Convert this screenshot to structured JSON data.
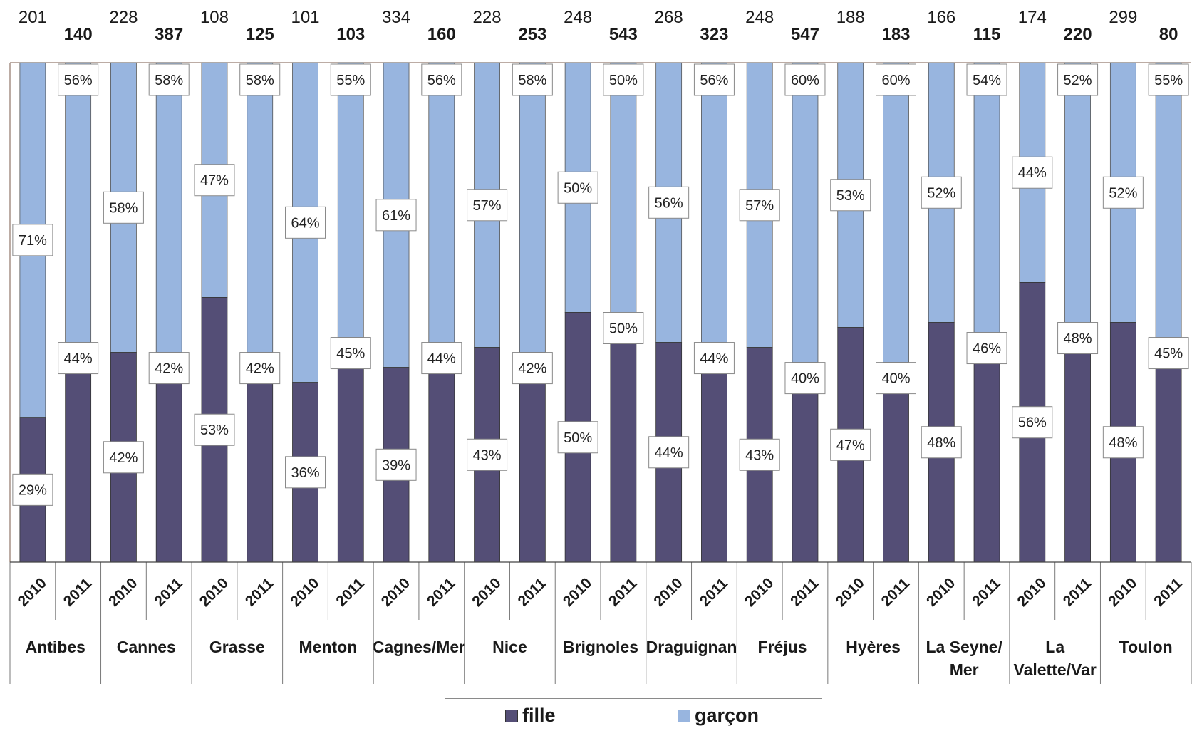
{
  "chart_data": {
    "type": "bar",
    "stacked": true,
    "percent_stacked": true,
    "title": "",
    "xlabel": "",
    "ylabel": "",
    "ylim": [
      0,
      100
    ],
    "grid": false,
    "legend_position": "bottom",
    "colors": {
      "fille": "#544e76",
      "garcon": "#98b5df",
      "separator": "#7a7a7a"
    },
    "years": [
      "2010",
      "2011"
    ],
    "groups": [
      {
        "name": "Antibes",
        "bars": [
          {
            "year": "2010",
            "total": "201",
            "total_bold": false,
            "fille": 29,
            "garcon": 71
          },
          {
            "year": "2011",
            "total": "140",
            "total_bold": true,
            "fille": 44,
            "garcon": 56
          }
        ]
      },
      {
        "name": "Cannes",
        "bars": [
          {
            "year": "2010",
            "total": "228",
            "total_bold": false,
            "fille": 42,
            "garcon": 58
          },
          {
            "year": "2011",
            "total": "387",
            "total_bold": true,
            "fille": 42,
            "garcon": 58
          }
        ]
      },
      {
        "name": "Grasse",
        "bars": [
          {
            "year": "2010",
            "total": "108",
            "total_bold": false,
            "fille": 53,
            "garcon": 47
          },
          {
            "year": "2011",
            "total": "125",
            "total_bold": true,
            "fille": 42,
            "garcon": 58
          }
        ]
      },
      {
        "name": "Menton",
        "bars": [
          {
            "year": "2010",
            "total": "101",
            "total_bold": false,
            "fille": 36,
            "garcon": 64
          },
          {
            "year": "2011",
            "total": "103",
            "total_bold": true,
            "fille": 45,
            "garcon": 55
          }
        ]
      },
      {
        "name": "Cagnes/Mer",
        "bars": [
          {
            "year": "2010",
            "total": "334",
            "total_bold": false,
            "fille": 39,
            "garcon": 61
          },
          {
            "year": "2011",
            "total": "160",
            "total_bold": true,
            "fille": 44,
            "garcon": 56
          }
        ]
      },
      {
        "name": "Nice",
        "bars": [
          {
            "year": "2010",
            "total": "228",
            "total_bold": false,
            "fille": 43,
            "garcon": 57
          },
          {
            "year": "2011",
            "total": "253",
            "total_bold": true,
            "fille": 42,
            "garcon": 58
          }
        ]
      },
      {
        "name": "Brignoles",
        "bars": [
          {
            "year": "2010",
            "total": "248",
            "total_bold": false,
            "fille": 50,
            "garcon": 50
          },
          {
            "year": "2011",
            "total": "543",
            "total_bold": true,
            "fille": 50,
            "garcon": 50
          }
        ]
      },
      {
        "name": "Draguignan",
        "bars": [
          {
            "year": "2010",
            "total": "268",
            "total_bold": false,
            "fille": 44,
            "garcon": 56
          },
          {
            "year": "2011",
            "total": "323",
            "total_bold": true,
            "fille": 44,
            "garcon": 56
          }
        ]
      },
      {
        "name": "Fréjus",
        "bars": [
          {
            "year": "2010",
            "total": "248",
            "total_bold": false,
            "fille": 43,
            "garcon": 57
          },
          {
            "year": "2011",
            "total": "547",
            "total_bold": true,
            "fille": 40,
            "garcon": 60
          }
        ]
      },
      {
        "name": "Hyères",
        "bars": [
          {
            "year": "2010",
            "total": "188",
            "total_bold": false,
            "fille": 47,
            "garcon": 53
          },
          {
            "year": "2011",
            "total": "183",
            "total_bold": true,
            "fille": 40,
            "garcon": 60
          }
        ]
      },
      {
        "name": "La Seyne/ Mer",
        "lines": [
          "La Seyne/",
          "Mer"
        ],
        "bars": [
          {
            "year": "2010",
            "total": "166",
            "total_bold": false,
            "fille": 48,
            "garcon": 52
          },
          {
            "year": "2011",
            "total": "115",
            "total_bold": true,
            "fille": 46,
            "garcon": 54
          }
        ]
      },
      {
        "name": "La Valette/Var",
        "lines": [
          "La",
          "Valette/Var"
        ],
        "bars": [
          {
            "year": "2010",
            "total": "174",
            "total_bold": false,
            "fille": 56,
            "garcon": 44
          },
          {
            "year": "2011",
            "total": "220",
            "total_bold": true,
            "fille": 48,
            "garcon": 52
          }
        ]
      },
      {
        "name": "Toulon",
        "bars": [
          {
            "year": "2010",
            "total": "299",
            "total_bold": false,
            "fille": 48,
            "garcon": 52
          },
          {
            "year": "2011",
            "total": "80",
            "total_bold": true,
            "fille": 45,
            "garcon": 55
          }
        ]
      }
    ],
    "legend": [
      {
        "key": "fille",
        "label": "fille"
      },
      {
        "key": "garcon",
        "label": "garçon"
      }
    ]
  }
}
